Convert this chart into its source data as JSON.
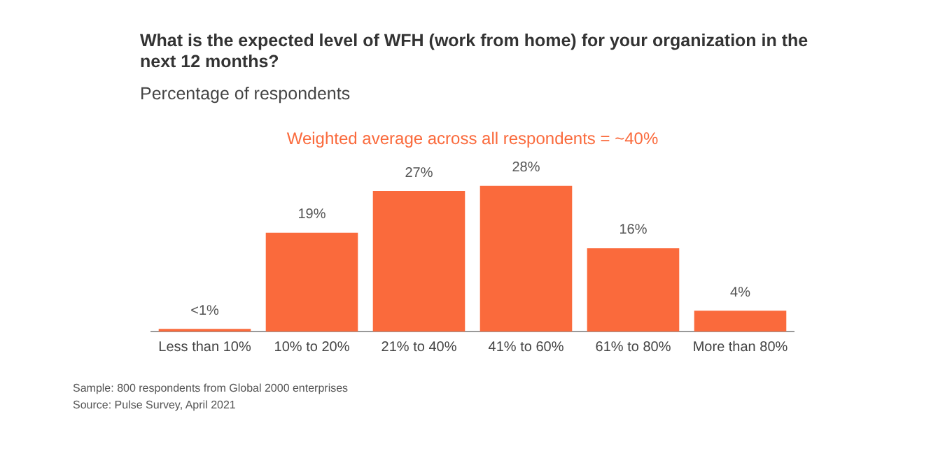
{
  "chart_data": {
    "type": "bar",
    "title": "What is the expected level of WFH (work from home) for your organization in the next 12 months?",
    "subtitle": "Percentage of respondents",
    "categories": [
      "Less than 10%",
      "10% to 20%",
      "21% to 40%",
      "41% to 60%",
      "61% to 80%",
      "More than 80%"
    ],
    "values": [
      0.5,
      19,
      27,
      28,
      16,
      4
    ],
    "value_labels": [
      "<1%",
      "19%",
      "27%",
      "28%",
      "16%",
      "4%"
    ],
    "color": "#fa6a3c",
    "grid": false,
    "legend": false,
    "annotations": [
      "Weighted average across all respondents = ~40%",
      "Sample: 800 respondents from Global 2000 enterprises",
      "Source: Pulse Survey, April 2021"
    ]
  }
}
